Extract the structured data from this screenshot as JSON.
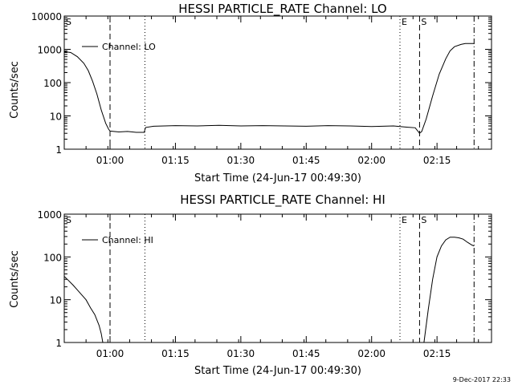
{
  "chart_data": [
    {
      "type": "line",
      "title": "HESSI PARTICLE_RATE Channel: LO",
      "xlabel": "Start Time (24-Jun-17 00:49:30)",
      "ylabel": "Counts/sec",
      "yscale": "log",
      "ylim": [
        1,
        10000
      ],
      "xlim": [
        "00:49:30",
        "02:27:30"
      ],
      "x_ticks": [
        "01:00",
        "01:15",
        "01:30",
        "01:45",
        "02:00",
        "02:15"
      ],
      "y_ticks": [
        "1",
        "10",
        "100",
        "1000",
        "10000"
      ],
      "legend": "Channel: LO",
      "legend_position": "top-left",
      "markers": [
        {
          "label": "S",
          "time": "00:49:30",
          "style": "dashed"
        },
        {
          "label": "",
          "time": "01:00:00",
          "style": "dashed"
        },
        {
          "label": "",
          "time": "01:08:00",
          "style": "dotted"
        },
        {
          "label": "E",
          "time": "02:06:30",
          "style": "dotted"
        },
        {
          "label": "S",
          "time": "02:11:00",
          "style": "dashed"
        },
        {
          "label": "",
          "time": "02:23:30",
          "style": "dash-dot"
        }
      ],
      "series": [
        {
          "name": "Channel: LO",
          "x": [
            "00:49:30",
            "00:51:00",
            "00:52:30",
            "00:54:00",
            "00:55:00",
            "00:56:00",
            "00:57:00",
            "00:58:00",
            "00:59:00",
            "00:59:40",
            "01:00:00",
            "01:02:00",
            "01:04:00",
            "01:06:00",
            "01:07:50",
            "01:08:10",
            "01:10:00",
            "01:15:00",
            "01:20:00",
            "01:25:00",
            "01:30:00",
            "01:35:00",
            "01:40:00",
            "01:45:00",
            "01:50:00",
            "01:55:00",
            "02:00:00",
            "02:05:00",
            "02:08:00",
            "02:10:00",
            "02:11:00",
            "02:11:30",
            "02:12:30",
            "02:14:00",
            "02:15:30",
            "02:17:00",
            "02:18:00",
            "02:19:00",
            "02:20:30",
            "02:21:30",
            "02:23:30"
          ],
          "values": [
            850,
            800,
            600,
            380,
            230,
            110,
            45,
            15,
            6,
            4,
            3.5,
            3.3,
            3.4,
            3.2,
            3.2,
            4.5,
            4.9,
            5.1,
            5.0,
            5.2,
            5.0,
            5.1,
            5.0,
            4.9,
            5.1,
            5.0,
            4.8,
            5.0,
            4.6,
            4.4,
            3.0,
            3.4,
            8,
            40,
            180,
            520,
            900,
            1200,
            1400,
            1500,
            1500
          ]
        }
      ]
    },
    {
      "type": "line",
      "title": "HESSI PARTICLE_RATE Channel: HI",
      "xlabel": "Start Time (24-Jun-17 00:49:30)",
      "ylabel": "Counts/sec",
      "yscale": "log",
      "ylim": [
        1,
        1000
      ],
      "xlim": [
        "00:49:30",
        "02:27:30"
      ],
      "x_ticks": [
        "01:00",
        "01:15",
        "01:30",
        "01:45",
        "02:00",
        "02:15"
      ],
      "y_ticks": [
        "1",
        "10",
        "100",
        "1000"
      ],
      "legend": "Channel: HI",
      "legend_position": "top-left",
      "markers": [
        {
          "label": "S",
          "time": "00:49:30",
          "style": "dashed"
        },
        {
          "label": "",
          "time": "01:00:00",
          "style": "dashed"
        },
        {
          "label": "",
          "time": "01:08:00",
          "style": "dotted"
        },
        {
          "label": "E",
          "time": "02:06:30",
          "style": "dotted"
        },
        {
          "label": "S",
          "time": "02:11:00",
          "style": "dashed"
        },
        {
          "label": "",
          "time": "02:23:30",
          "style": "dash-dot"
        }
      ],
      "series": [
        {
          "name": "Channel: HI",
          "x": [
            "00:49:30",
            "00:50:30",
            "00:51:30",
            "00:52:30",
            "00:53:30",
            "00:54:30",
            "00:55:30",
            "00:56:30",
            "00:57:30",
            "00:58:00",
            "00:58:20",
            "02:12:00",
            "02:13:00",
            "02:14:00",
            "02:15:00",
            "02:16:00",
            "02:17:00",
            "02:18:00",
            "02:19:00",
            "02:20:00",
            "02:21:00",
            "02:22:00",
            "02:23:00",
            "02:23:30"
          ],
          "values": [
            35,
            28,
            22,
            17,
            13,
            10,
            6.5,
            4.5,
            2.5,
            1.6,
            1.0,
            1.0,
            6,
            30,
            100,
            180,
            250,
            290,
            290,
            280,
            260,
            220,
            190,
            180
          ]
        }
      ]
    }
  ],
  "footer": {
    "stamp": "9-Dec-2017 22:33"
  }
}
